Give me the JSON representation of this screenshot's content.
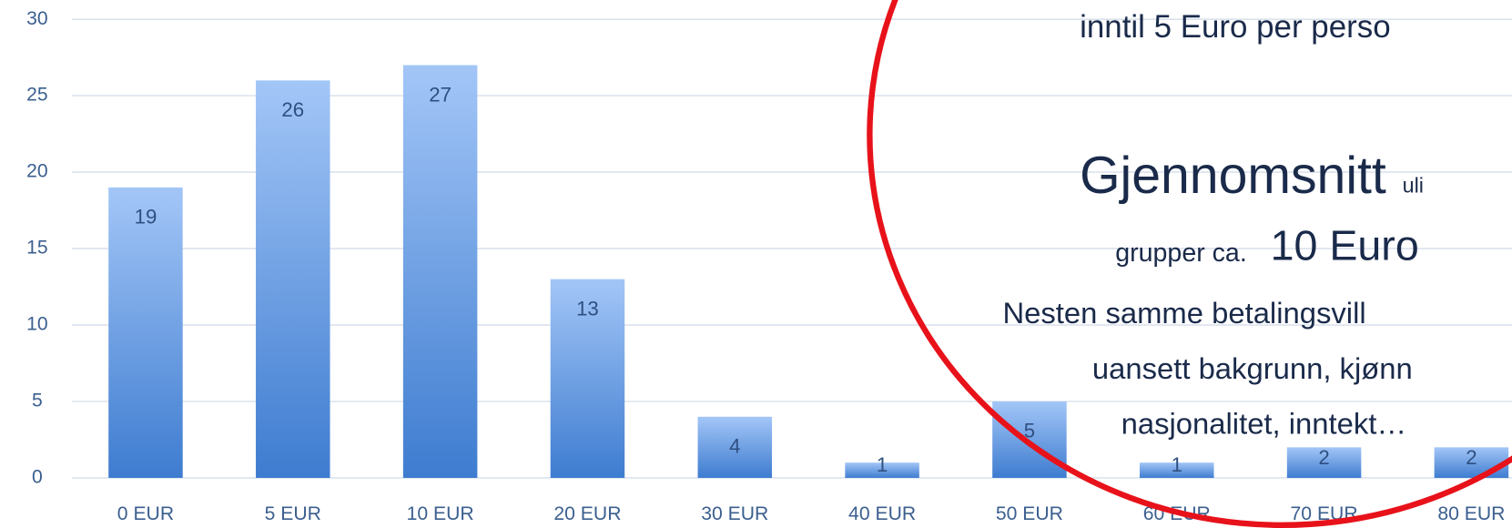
{
  "chart_data": {
    "type": "bar",
    "categories": [
      "0 EUR",
      "5 EUR",
      "10 EUR",
      "20 EUR",
      "30 EUR",
      "40 EUR",
      "50 EUR",
      "60 EUR",
      "70 EUR",
      "80 EUR"
    ],
    "values": [
      19,
      26,
      27,
      13,
      4,
      1,
      5,
      1,
      2,
      2
    ],
    "color_top": "#a3c6f7",
    "color_bottom": "#3e7cd0",
    "ylim": [
      0,
      30
    ],
    "yticks": [
      0,
      5,
      10,
      15,
      20,
      25,
      30
    ],
    "grid": true,
    "annotations": [
      "inntil 5 Euro per perso",
      "Gjennomsnitt",
      "uli",
      "grupper ca.",
      "10 Euro",
      "Nesten samme betalingsvill",
      "uansett bakgrunn, kjønn",
      "nasjonalitet, inntekt…"
    ]
  }
}
